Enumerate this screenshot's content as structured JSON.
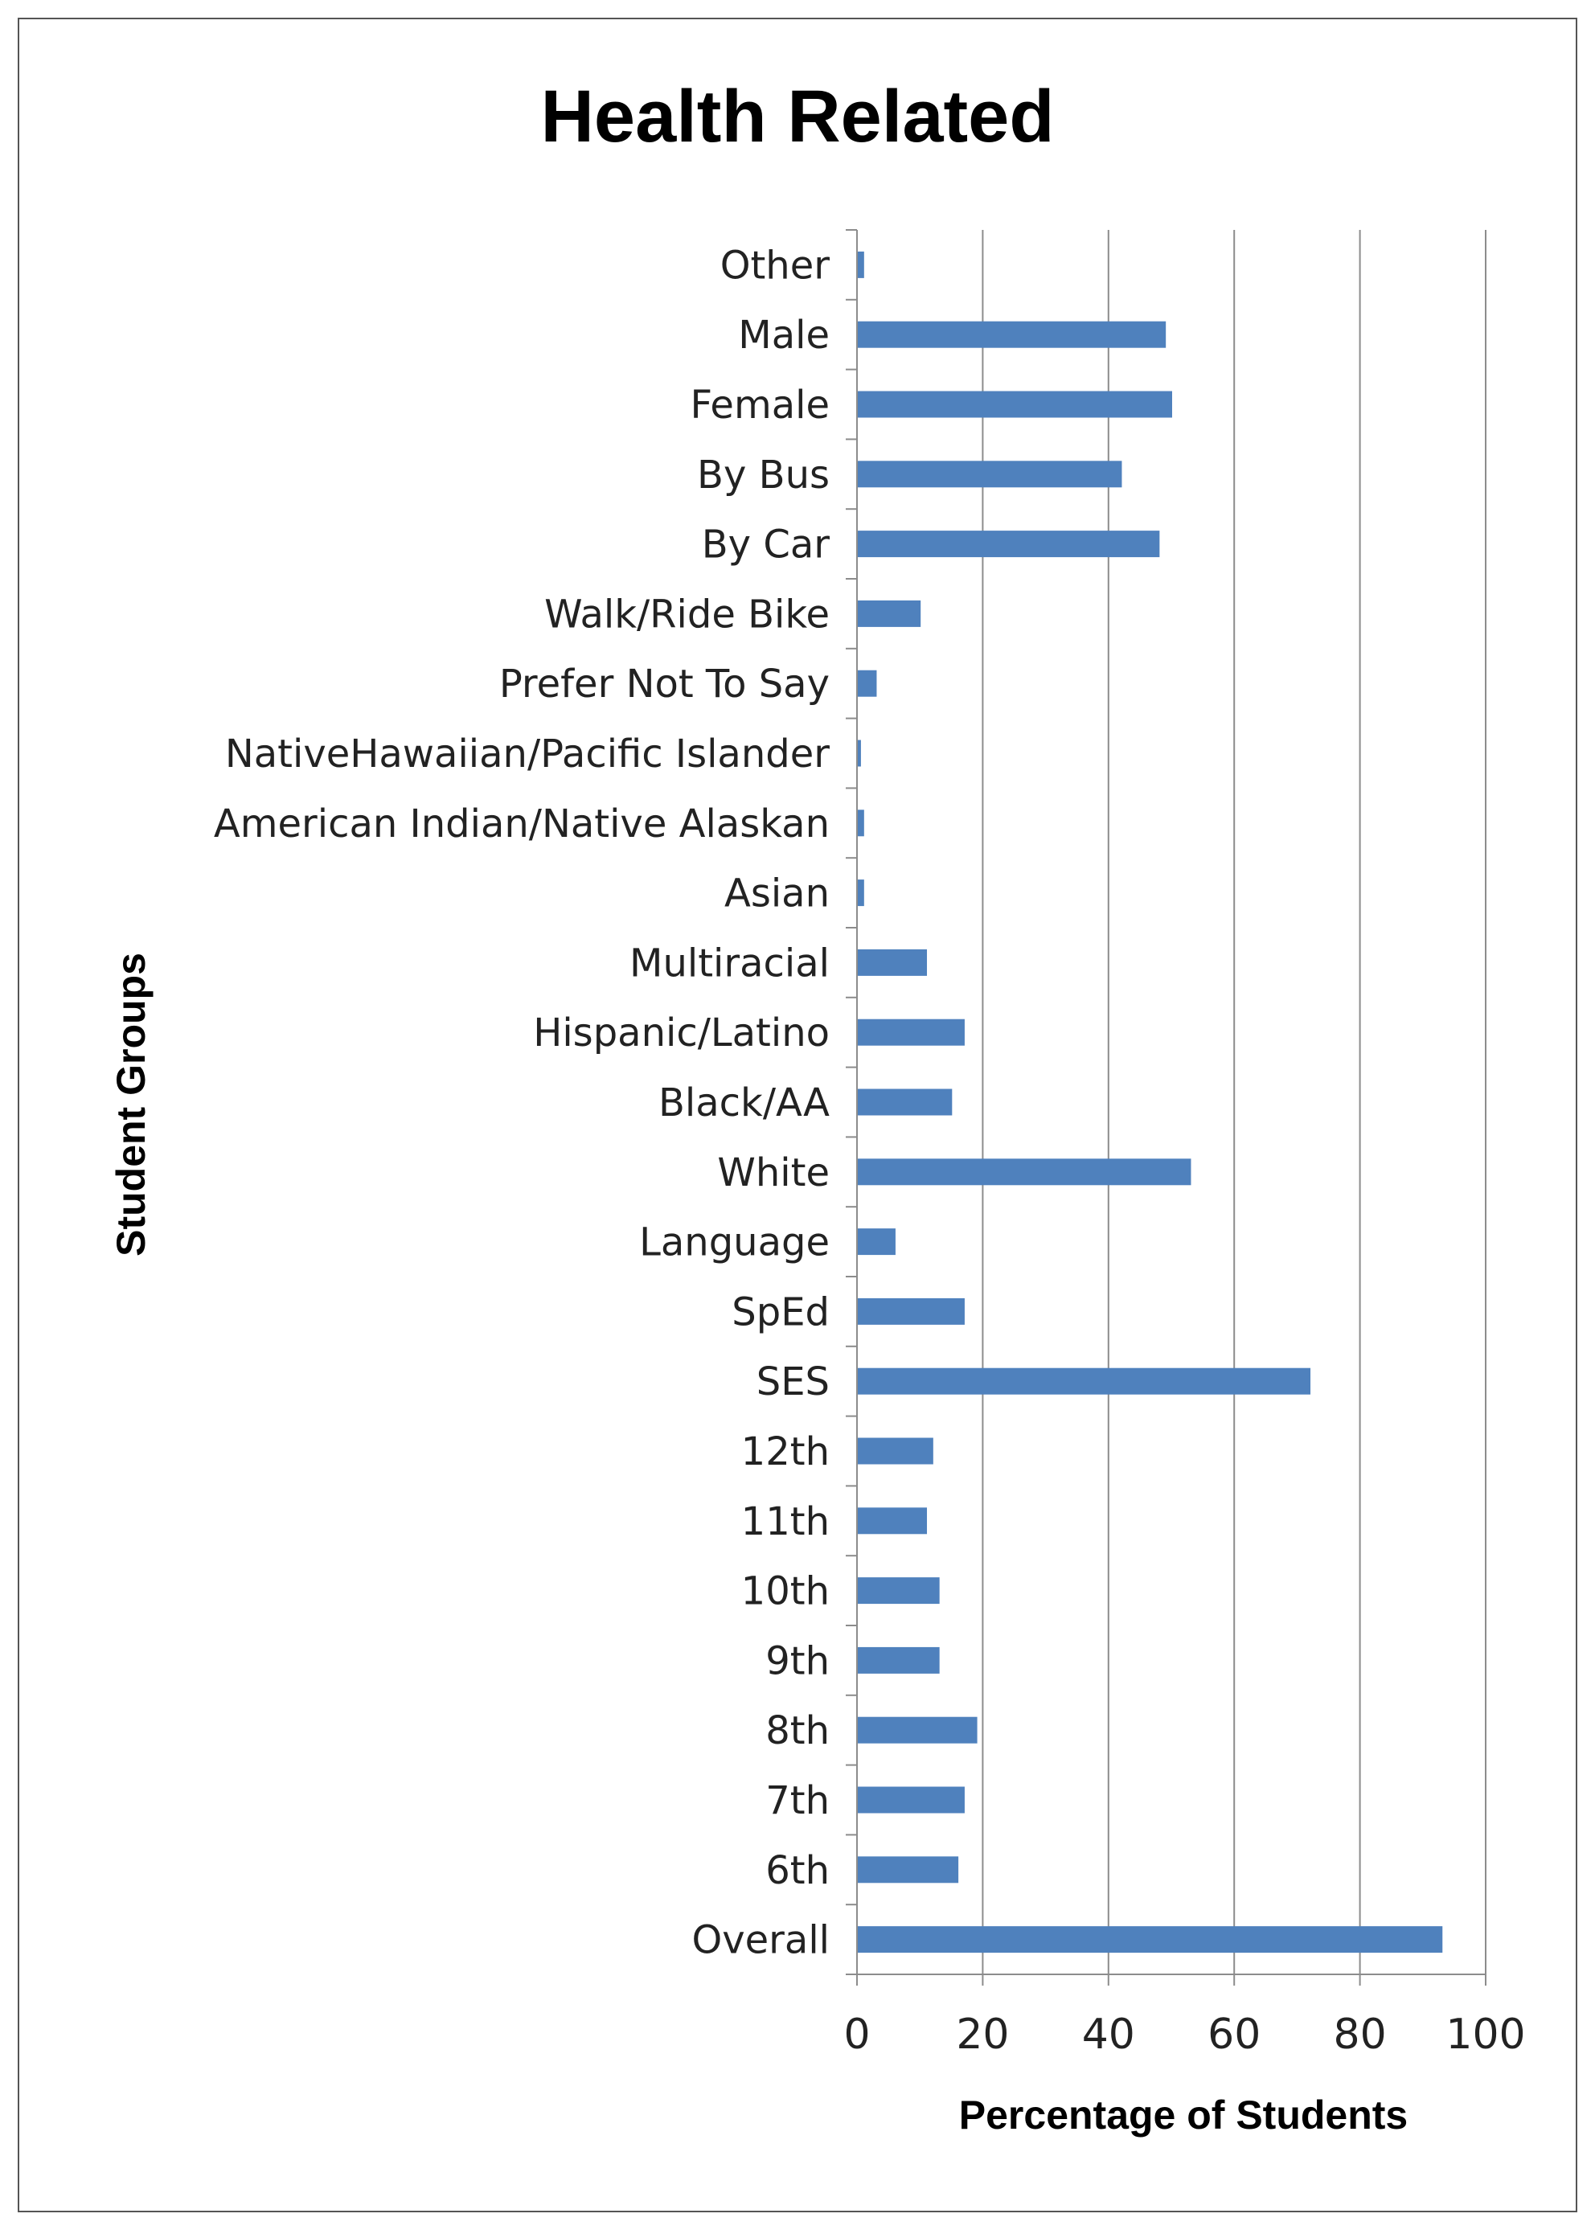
{
  "chart_data": {
    "type": "bar",
    "orientation": "horizontal",
    "title": "Health Related",
    "xlabel": "Percentage of Students",
    "ylabel": "Student Groups",
    "xlim": [
      0,
      100
    ],
    "xticks": [
      0,
      20,
      40,
      60,
      80,
      100
    ],
    "grid": true,
    "legend": "none",
    "bar_color": "#4F81BD",
    "categories": [
      "Other",
      "Male",
      "Female",
      "By Bus",
      "By Car",
      "Walk/Ride Bike",
      "Prefer Not To Say",
      "NativeHawaiian/Pacific Islander",
      "American Indian/Native Alaskan",
      "Asian",
      "Multiracial",
      "Hispanic/Latino",
      "Black/AA",
      "White",
      "Language",
      "SpEd",
      "SES",
      "12th",
      "11th",
      "10th",
      "9th",
      "8th",
      "7th",
      "6th",
      "Overall"
    ],
    "values": [
      1,
      49,
      50,
      42,
      48,
      10,
      3,
      0.5,
      1,
      1,
      11,
      17,
      15,
      53,
      6,
      17,
      72,
      12,
      11,
      13,
      13,
      19,
      17,
      16,
      93
    ]
  }
}
